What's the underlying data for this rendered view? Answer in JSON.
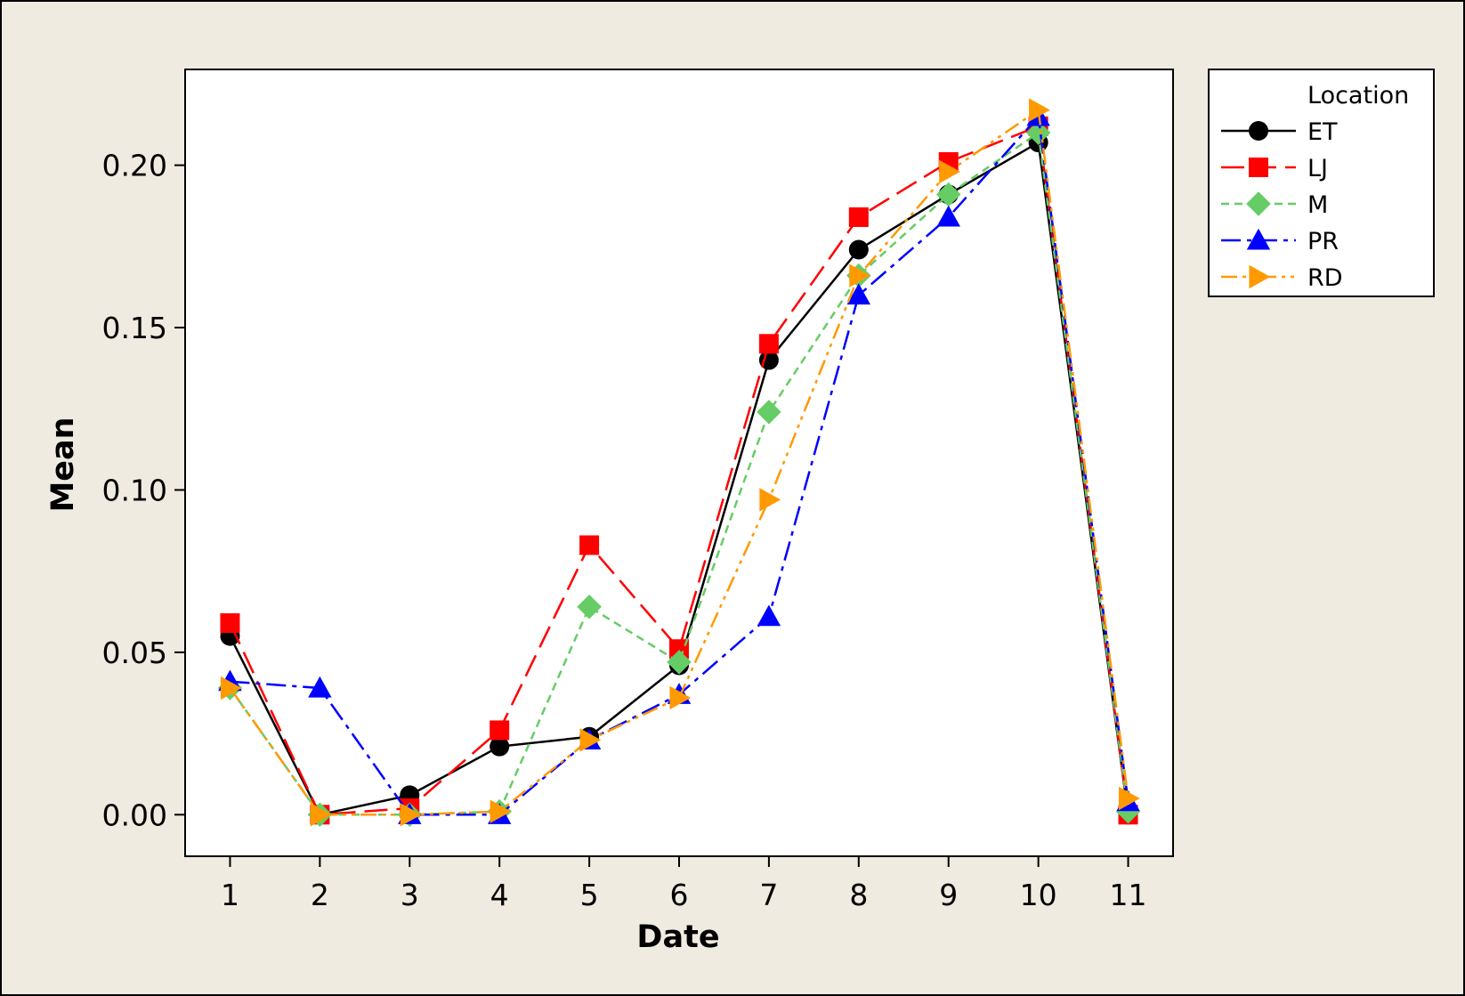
{
  "chart_data": {
    "type": "line",
    "xlabel": "Date",
    "ylabel": "Mean",
    "x": [
      1,
      2,
      3,
      4,
      5,
      6,
      7,
      8,
      9,
      10,
      11
    ],
    "xlim": [
      0.5,
      11.5
    ],
    "ylim": [
      -0.0128,
      0.2295
    ],
    "yticks": [
      0.0,
      0.05,
      0.1,
      0.15,
      0.2
    ],
    "ytick_labels": [
      "0.00",
      "0.05",
      "0.10",
      "0.15",
      "0.20"
    ],
    "xtick_labels": [
      "1",
      "2",
      "3",
      "4",
      "5",
      "6",
      "7",
      "8",
      "9",
      "10",
      "11"
    ],
    "grid": false,
    "legend": {
      "title": "Location",
      "position": "right"
    },
    "series": [
      {
        "name": "ET",
        "color": "#000000",
        "marker": "circle",
        "dash": "solid",
        "values": [
          0.055,
          0.0,
          0.006,
          0.021,
          0.024,
          0.046,
          0.14,
          0.174,
          0.191,
          0.207,
          0.0
        ]
      },
      {
        "name": "LJ",
        "color": "#ff0000",
        "marker": "square",
        "dash": "long-dash",
        "values": [
          0.059,
          0.0,
          0.002,
          0.026,
          0.083,
          0.051,
          0.145,
          0.184,
          0.201,
          0.212,
          0.0
        ]
      },
      {
        "name": "M",
        "color": "#66cc66",
        "marker": "diamond",
        "dash": "short-dash",
        "values": [
          0.039,
          0.0,
          0.0,
          0.001,
          0.064,
          0.047,
          0.124,
          0.166,
          0.191,
          0.21,
          0.001
        ]
      },
      {
        "name": "PR",
        "color": "#0000ff",
        "marker": "triangle-up",
        "dash": "dash-dot",
        "values": [
          0.041,
          0.039,
          0.0,
          0.0,
          0.023,
          0.037,
          0.061,
          0.16,
          0.184,
          0.215,
          0.004
        ]
      },
      {
        "name": "RD",
        "color": "#ff9900",
        "marker": "triangle-right",
        "dash": "dash-dot-dot",
        "values": [
          0.039,
          0.0,
          0.0,
          0.001,
          0.023,
          0.036,
          0.097,
          0.166,
          0.198,
          0.217,
          0.005
        ]
      }
    ]
  }
}
